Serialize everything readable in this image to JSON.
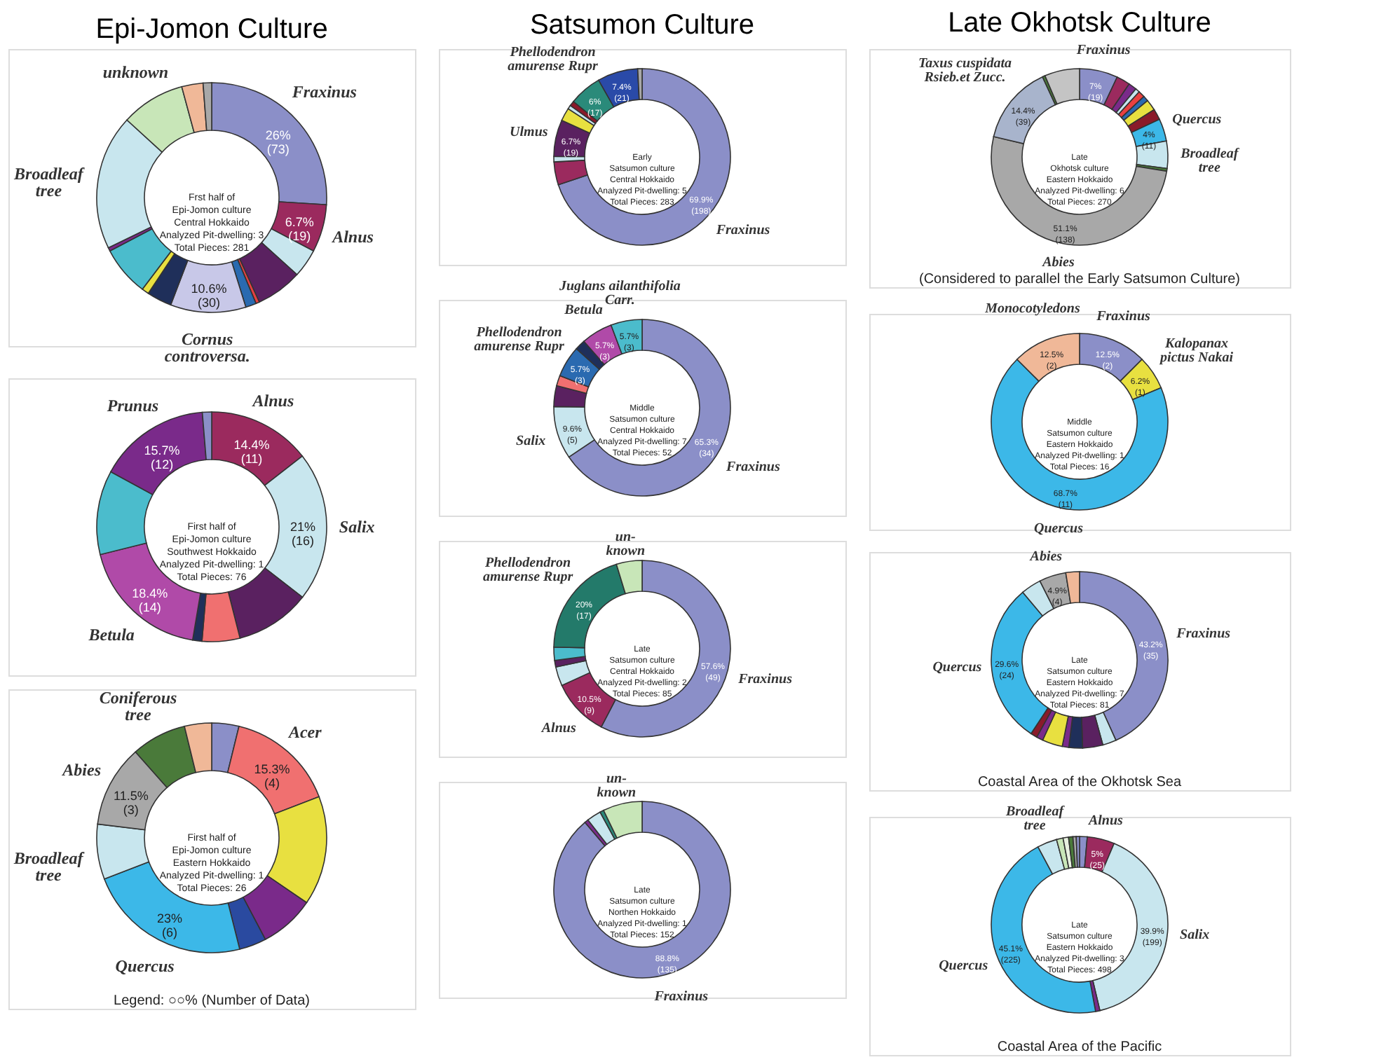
{
  "chart_data": [
    {
      "type": "donut",
      "title": "Epi-Jomon Culture",
      "categories": [
        "Fraxinus",
        "Alnus",
        null,
        null,
        null,
        null,
        "Cornus\ncontroversa.",
        null,
        null,
        null,
        null,
        "Broadleaf\ntree",
        "unknown",
        null,
        null
      ],
      "values": [
        26,
        6.7,
        4,
        6.5,
        0.5,
        1.5,
        10.6,
        3.5,
        1,
        7,
        0.5,
        19,
        9,
        3,
        1.2
      ],
      "colors": [
        "#8b8fc8",
        "#9b2a5e",
        "#c8e6ee",
        "#5a2160",
        "#e84040",
        "#2a6ab0",
        "#c8c8e8",
        "#1f2f5a",
        "#e8e040",
        "#4bbccc",
        "#7a2a8a",
        "#c8e6ee",
        "#c8e6b8",
        "#f0b898",
        "#a8a8a8"
      ],
      "value_labels": [
        "26%\n(73)",
        "6.7%\n(19)",
        null,
        null,
        null,
        null,
        "10.6%\n(30)",
        null,
        null,
        null,
        null,
        null,
        null,
        null,
        null
      ],
      "annotations": [
        "Frst half of\nEpi-Jomon culture\nCentral Hokkaido\nAnalyzed Pit-dwelling: 3\nTotal Pieces: 281"
      ]
    },
    {
      "type": "donut",
      "categories": [
        "Alnus",
        "Salix",
        null,
        null,
        null,
        "Betula",
        null,
        "Prunus",
        null
      ],
      "values": [
        14.4,
        21,
        10.5,
        5.3,
        1.3,
        18.4,
        11.8,
        15.7,
        1.3
      ],
      "colors": [
        "#9b2a5e",
        "#c8e6ee",
        "#5a2160",
        "#f07070",
        "#1f2f5a",
        "#b04aa8",
        "#4bbccc",
        "#7a2a8a",
        "#8b8fc8"
      ],
      "value_labels": [
        "14.4%\n(11)",
        "21%\n(16)",
        null,
        null,
        null,
        "18.4%\n(14)",
        null,
        "15.7%\n(12)",
        null
      ],
      "annotations": [
        "First half of\nEpi-Jomon culture\nSouthwest Hokkaido\nAnalyzed Pit-dwelling: 1\nTotal Pieces: 76"
      ]
    },
    {
      "type": "donut",
      "categories": [
        null,
        "Acer",
        null,
        null,
        null,
        "Quercus",
        "Broadleaf\ntree",
        "Abies",
        "Coniferous\ntree",
        null
      ],
      "values": [
        3.8,
        15.3,
        15.3,
        7.7,
        3.8,
        23,
        7.7,
        11.5,
        7.7,
        3.8
      ],
      "colors": [
        "#8b8fc8",
        "#f07070",
        "#e8e040",
        "#7a2a8a",
        "#2a4aa0",
        "#3cb8e8",
        "#c8e6ee",
        "#a8a8a8",
        "#4a7a3a",
        "#f0b898"
      ],
      "value_labels": [
        null,
        "15.3%\n(4)",
        null,
        null,
        null,
        "23%\n(6)",
        null,
        "11.5%\n(3)",
        null,
        null
      ],
      "annotations": [
        "First half of\nEpi-Jomon culture\nEastern Hokkaido\nAnalyzed Pit-dwelling: 1\nTotal Pieces: 26",
        "Legend: ○○% (Number of Data)"
      ]
    },
    {
      "type": "donut",
      "title": "Satsumon Culture",
      "categories": [
        "Fraxinus",
        null,
        null,
        "Ulmus",
        null,
        null,
        null,
        "Phellodendron\namurense Rupr",
        null,
        null
      ],
      "values": [
        69.9,
        4.2,
        1,
        6.7,
        2.4,
        0.7,
        0.9,
        6,
        7.4,
        0.8
      ],
      "colors": [
        "#8b8fc8",
        "#9b2a5e",
        "#c8e6ee",
        "#5a2160",
        "#e8e040",
        "#c8e6ee",
        "#8a1a2a",
        "#2a8a7a",
        "#2a4aa8",
        "#a8a8a8"
      ],
      "value_labels": [
        "69.9%\n(198)",
        null,
        null,
        "6.7%\n(19)",
        null,
        null,
        null,
        "6%\n(17)",
        "7.4%\n(21)",
        null
      ],
      "annotations": [
        "Early\nSatsumon culture\nCentral Hokkaido\nAnalyzed Pit-dwelling: 5\nTotal Pieces: 283"
      ]
    },
    {
      "type": "donut",
      "categories": [
        "Fraxinus",
        "Salix",
        null,
        null,
        "Phellodendron\namurense Rupr",
        null,
        "Betula",
        "Juglans ailanthifolia\nCarr."
      ],
      "values": [
        65.3,
        9.6,
        3.8,
        1.9,
        5.7,
        1.9,
        5.7,
        5.7
      ],
      "colors": [
        "#8b8fc8",
        "#c8e6ee",
        "#5a2160",
        "#f07070",
        "#2a6ab0",
        "#1f2f5a",
        "#b04aa8",
        "#4bbccc"
      ],
      "value_labels": [
        "65.3%\n(34)",
        "9.6%\n(5)",
        null,
        null,
        "5.7%\n(3)",
        null,
        "5.7%\n(3)",
        "5.7%\n(3)"
      ],
      "annotations": [
        "Middle\nSatsumon culture\nCentral Hokkaido\nAnalyzed Pit-dwelling: 7\nTotal Pieces: 52"
      ]
    },
    {
      "type": "donut",
      "categories": [
        "Fraxinus",
        "Alnus",
        null,
        null,
        null,
        "Phellodendron\namurense Rupr",
        "un-\nknown"
      ],
      "values": [
        57.6,
        10.5,
        3.5,
        1.2,
        2.4,
        20,
        4.7
      ],
      "colors": [
        "#8b8fc8",
        "#9b2a5e",
        "#c8e6ee",
        "#5a2160",
        "#4bbccc",
        "#237a6a",
        "#c8e6b8"
      ],
      "value_labels": [
        "57.6%\n(49)",
        "10.5%\n(9)",
        null,
        null,
        null,
        "20%\n(17)",
        null
      ],
      "annotations": [
        "Late\nSatsumon culture\nCentral Hokkaido\nAnalyzed Pit-dwelling: 2\nTotal Pieces: 85"
      ]
    },
    {
      "type": "donut",
      "categories": [
        "Fraxinus",
        null,
        null,
        null,
        "un-\nknown"
      ],
      "values": [
        88.8,
        0.7,
        2.6,
        0.7,
        7.2
      ],
      "colors": [
        "#8b8fc8",
        "#7a2a8a",
        "#c8e6ee",
        "#2a8a7a",
        "#c8e6b8"
      ],
      "value_labels": [
        "88.8%\n(135)",
        null,
        null,
        null,
        null
      ],
      "annotations": [
        "Late\nSatsumon culture\nNorthen Hokkaido\nAnalyzed Pit-dwelling: 1\nTotal Pieces: 152"
      ]
    },
    {
      "type": "donut",
      "title": "Late Okhotsk Culture",
      "categories": [
        "Fraxinus",
        null,
        null,
        null,
        null,
        null,
        null,
        null,
        "Quercus",
        "Broadleaf\ntree",
        null,
        "Abies",
        "Taxus cuspidata\nRsieb.et Zucc.",
        null,
        null
      ],
      "values": [
        7,
        2.5,
        1.5,
        0.8,
        1.2,
        1,
        2,
        2,
        4.1,
        5,
        0.5,
        51.1,
        14.4,
        0.5,
        6.4
      ],
      "colors": [
        "#8b8fc8",
        "#9b2a5e",
        "#7a2a8a",
        "#c8e6ee",
        "#e84040",
        "#2a6ab0",
        "#e8e040",
        "#8a1a2a",
        "#3cb8e8",
        "#c8e6ee",
        "#4a7a3a",
        "#a8a8a8",
        "#a8b4cc",
        "#4a7a3a",
        "#c4c4c4"
      ],
      "value_labels": [
        "7%\n(19)",
        null,
        null,
        null,
        null,
        null,
        null,
        null,
        "4%\n(11)",
        null,
        null,
        "51.1%\n(138)",
        "14.4%\n(39)",
        null,
        null
      ],
      "annotations": [
        "Late\nOkhotsk culture\nEastern Hokkaido\nAnalyzed Pit-dwelling: 6\nTotal Pieces: 270",
        "(Considered to parallel the Early Satsumon Culture)"
      ]
    },
    {
      "type": "donut",
      "categories": [
        "Fraxinus",
        "Kalopanax\npictus Nakai",
        "Quercus",
        "Monocotyledons"
      ],
      "values": [
        12.5,
        6.2,
        68.7,
        12.5
      ],
      "colors": [
        "#8b8fc8",
        "#e8e040",
        "#3cb8e8",
        "#f0b898"
      ],
      "value_labels": [
        "12.5%\n(2)",
        "6.2%\n(1)",
        "68.7%\n(11)",
        "12.5%\n(2)"
      ],
      "annotations": [
        "Middle\nSatsumon culture\nEastern Hokkaido\nAnalyzed Pit-dwelling: 1\nTotal Pieces: 16"
      ]
    },
    {
      "type": "donut",
      "categories": [
        "Fraxinus",
        null,
        null,
        null,
        null,
        null,
        null,
        null,
        "Quercus",
        null,
        "Abies",
        null
      ],
      "values": [
        43.2,
        2.5,
        3.7,
        2.5,
        1.2,
        3.7,
        1.2,
        1.2,
        29.6,
        3.7,
        4.9,
        2.5
      ],
      "colors": [
        "#8b8fc8",
        "#c8e6ee",
        "#5a2160",
        "#1f2f5a",
        "#7a2a8a",
        "#e8e040",
        "#7a2a8a",
        "#8a1a2a",
        "#3cb8e8",
        "#c8e6ee",
        "#a8a8a8",
        "#f0b898"
      ],
      "value_labels": [
        "43.2%\n(35)",
        null,
        null,
        null,
        null,
        null,
        null,
        null,
        "29.6%\n(24)",
        null,
        "4.9%\n(4)",
        null
      ],
      "annotations": [
        "Late\nSatsumon culture\nEastern Hokkaido\nAnalyzed Pit-dwelling: 7\nTotal Pieces: 81",
        "Coastal Area of the Okhotsk Sea"
      ]
    },
    {
      "type": "donut",
      "categories": [
        null,
        "Alnus",
        "Salix",
        null,
        "Quercus",
        "Broadleaf\ntree",
        null,
        null,
        null,
        null,
        null
      ],
      "values": [
        1.4,
        5,
        39.9,
        0.8,
        45.1,
        3.6,
        1.2,
        1,
        0.8,
        0.6,
        0.6
      ],
      "colors": [
        "#8b8fc8",
        "#9b2a5e",
        "#c8e6ee",
        "#7a2a8a",
        "#3cb8e8",
        "#c8e6ee",
        "#c8e6b8",
        "#e8f0e0",
        "#4a7a3a",
        "#a8a8a8",
        "#8b8fc8"
      ],
      "value_labels": [
        null,
        "5%\n(25)",
        "39.9%\n(199)",
        null,
        "45.1%\n(225)",
        null,
        null,
        null,
        null,
        null,
        null
      ],
      "annotations": [
        "Late\nSatsumon culture\nEastern Hokkaido\nAnalyzed Pit-dwelling: 3\nTotal Pieces: 498",
        "Coastal Area of the Pacific"
      ]
    }
  ]
}
